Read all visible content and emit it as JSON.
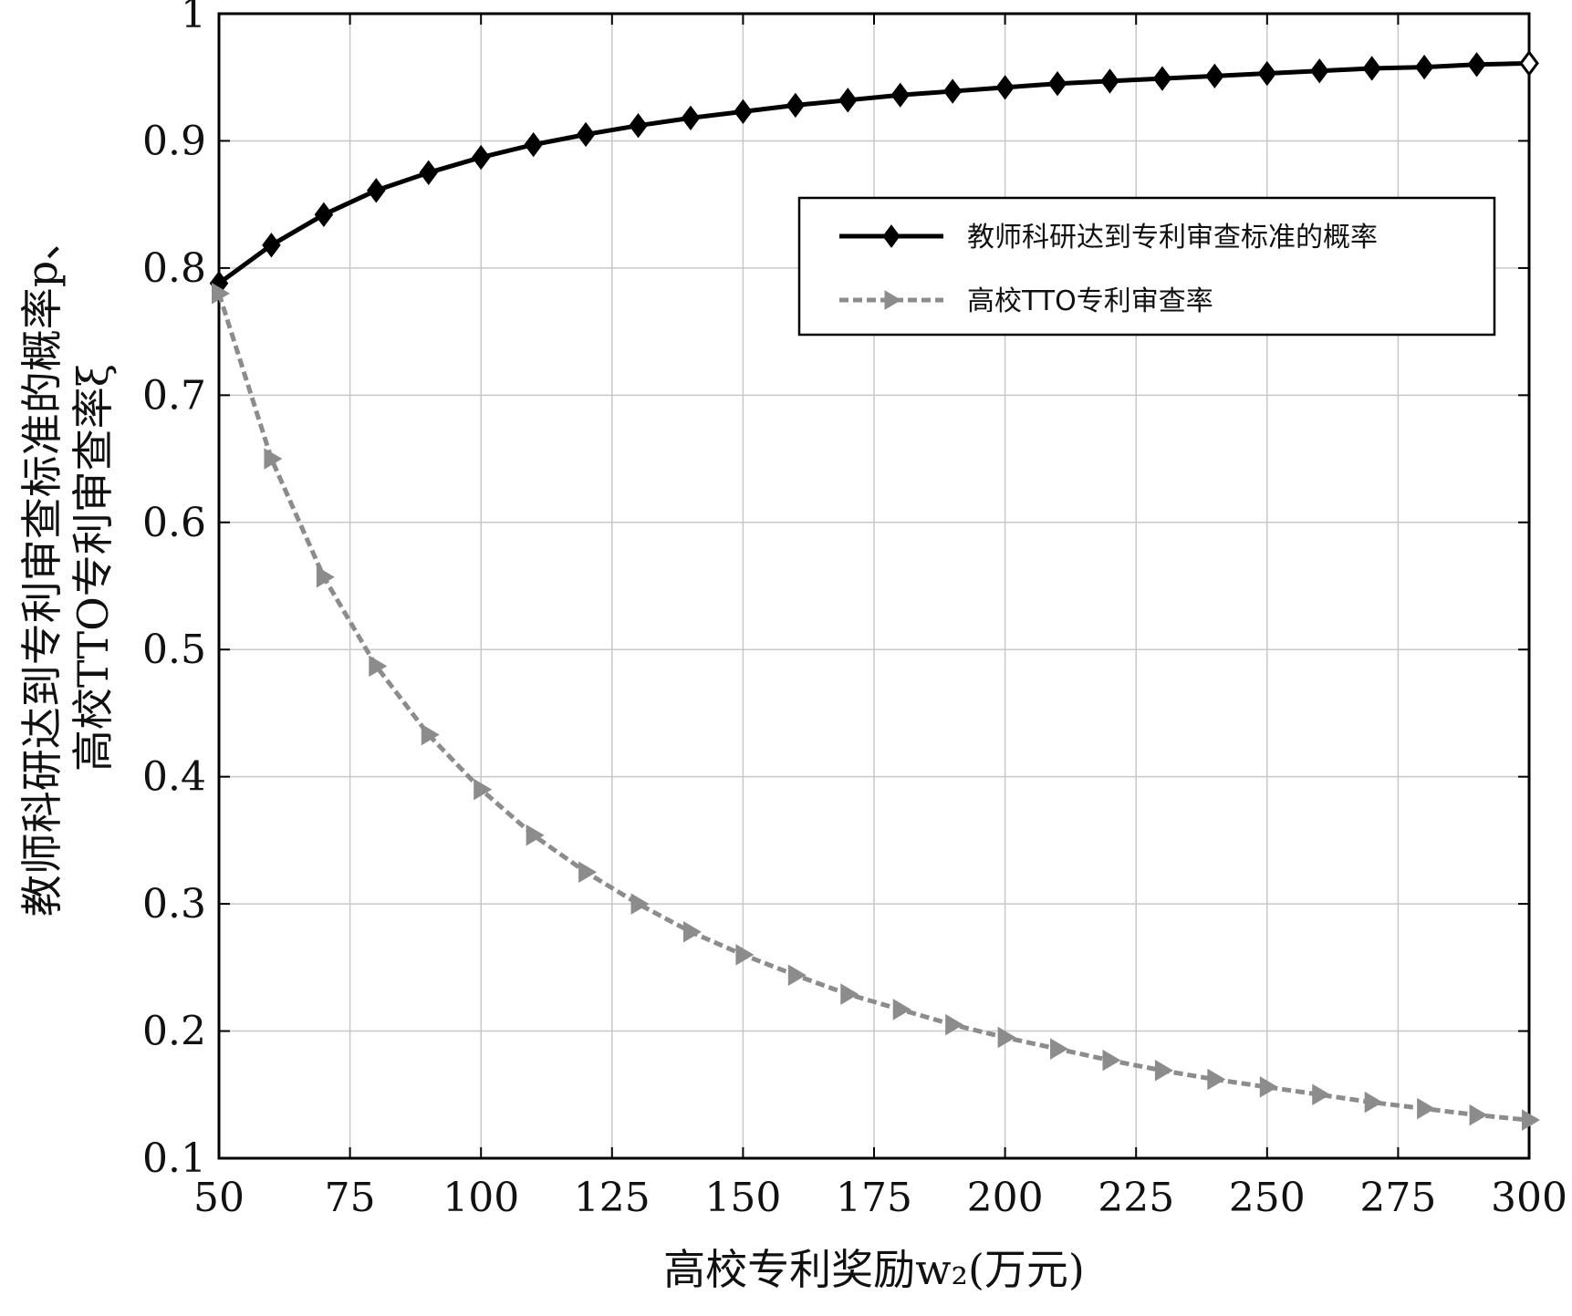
{
  "chart_data": {
    "type": "line",
    "xlabel": "高校专利奖励w₂(万元)",
    "ylabel_line1": "教师科研达到专利审查标准的概率p、",
    "ylabel_line2": "高校TTO专利审查率ξ",
    "xlim": [
      50,
      300
    ],
    "ylim": [
      0.1,
      1
    ],
    "xticks": [
      50,
      75,
      100,
      125,
      150,
      175,
      200,
      225,
      250,
      275,
      300
    ],
    "yticks": [
      "0.1",
      "0.2",
      "0.3",
      "0.4",
      "0.5",
      "0.6",
      "0.7",
      "0.8",
      "0.9",
      "1"
    ],
    "grid": true,
    "legend_position": "upper-right",
    "x": [
      50,
      60,
      70,
      80,
      90,
      100,
      110,
      120,
      130,
      140,
      150,
      160,
      170,
      180,
      190,
      200,
      210,
      220,
      230,
      240,
      250,
      260,
      270,
      280,
      290,
      300
    ],
    "series": [
      {
        "name": "教师科研达到专利审查标准的概率",
        "style": "solid",
        "marker": "diamond",
        "color": "#000000",
        "values": [
          0.788,
          0.818,
          0.842,
          0.861,
          0.875,
          0.887,
          0.897,
          0.905,
          0.912,
          0.918,
          0.923,
          0.928,
          0.932,
          0.936,
          0.939,
          0.942,
          0.945,
          0.947,
          0.949,
          0.951,
          0.953,
          0.955,
          0.957,
          0.958,
          0.96,
          0.961
        ]
      },
      {
        "name": "高校TTO专利审查率",
        "style": "dashed",
        "marker": "triangle-right",
        "color": "#8c8c8c",
        "values": [
          0.78,
          0.65,
          0.557,
          0.487,
          0.433,
          0.39,
          0.354,
          0.325,
          0.3,
          0.278,
          0.26,
          0.244,
          0.229,
          0.217,
          0.205,
          0.195,
          0.186,
          0.177,
          0.169,
          0.162,
          0.156,
          0.15,
          0.144,
          0.139,
          0.134,
          0.13
        ]
      }
    ]
  }
}
